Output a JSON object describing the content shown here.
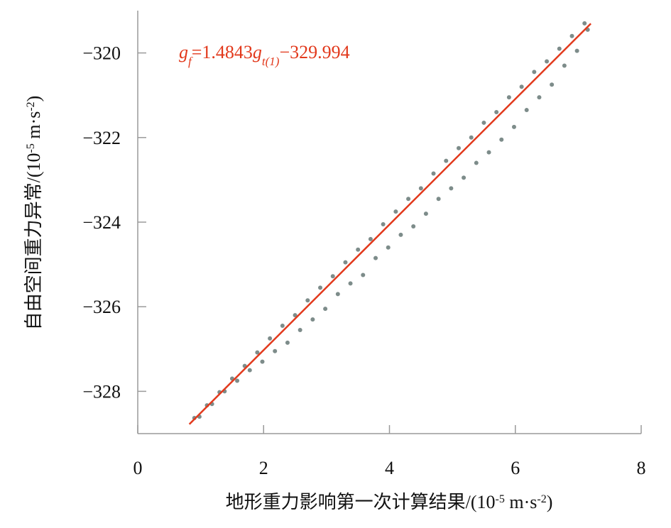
{
  "chart_data": {
    "type": "scatter",
    "annotation": [
      "g",
      "f",
      "=1.4843",
      "g",
      "t(1)",
      "−329.994"
    ],
    "annotation_color": "#e2391c",
    "xlabel": [
      "地形重力影响第一次计算结果/(10",
      "-5",
      " m·s",
      "-2",
      ")"
    ],
    "ylabel": [
      "自由空间重力异常/(10",
      "-5",
      " m·s",
      "-2",
      ")"
    ],
    "xlim": [
      0,
      8
    ],
    "xticks": [
      0,
      2,
      4,
      6,
      8
    ],
    "ylim": [
      -329,
      -319
    ],
    "yticks": [
      {
        "value": -328,
        "label": "−328"
      },
      {
        "value": -326,
        "label": "−326"
      },
      {
        "value": -324,
        "label": "−324"
      },
      {
        "value": -322,
        "label": "−322"
      },
      {
        "value": -320,
        "label": "−320"
      }
    ],
    "series": [
      {
        "type": "scatter",
        "color": "#7d8c8a",
        "x": [
          0.9,
          0.98,
          1.1,
          1.18,
          1.3,
          1.38,
          1.5,
          1.58,
          1.7,
          1.78,
          1.9,
          1.98,
          2.1,
          2.18,
          2.3,
          2.38,
          2.5,
          2.58,
          2.7,
          2.78,
          2.9,
          2.98,
          3.1,
          3.18,
          3.3,
          3.38,
          3.5,
          3.58,
          3.7,
          3.78,
          3.9,
          3.98,
          4.1,
          4.18,
          4.3,
          4.38,
          4.5,
          4.58,
          4.7,
          4.78,
          4.9,
          4.98,
          5.1,
          5.18,
          5.3,
          5.38,
          5.5,
          5.58,
          5.7,
          5.78,
          5.9,
          5.98,
          6.1,
          6.18,
          6.3,
          6.38,
          6.5,
          6.58,
          6.7,
          6.78,
          6.9,
          6.98,
          7.1,
          7.15
        ],
        "values": [
          -328.63,
          -328.6,
          -328.33,
          -328.3,
          -328.02,
          -328.0,
          -327.7,
          -327.75,
          -327.4,
          -327.5,
          -327.08,
          -327.3,
          -326.75,
          -327.05,
          -326.45,
          -326.85,
          -326.2,
          -326.55,
          -325.85,
          -326.3,
          -325.55,
          -326.05,
          -325.28,
          -325.7,
          -324.95,
          -325.45,
          -324.65,
          -325.25,
          -324.4,
          -324.85,
          -324.05,
          -324.6,
          -323.75,
          -324.3,
          -323.45,
          -324.1,
          -323.2,
          -323.8,
          -322.85,
          -323.45,
          -322.55,
          -323.2,
          -322.25,
          -322.95,
          -322.0,
          -322.6,
          -321.65,
          -322.35,
          -321.4,
          -322.05,
          -321.05,
          -321.75,
          -320.8,
          -321.35,
          -320.45,
          -321.05,
          -320.2,
          -320.75,
          -319.9,
          -320.3,
          -319.6,
          -319.95,
          -319.3,
          -319.45
        ]
      },
      {
        "type": "line",
        "color": "#e2391c",
        "x": [
          0.82,
          7.2
        ],
        "values": [
          -328.777,
          -319.307
        ]
      }
    ]
  }
}
